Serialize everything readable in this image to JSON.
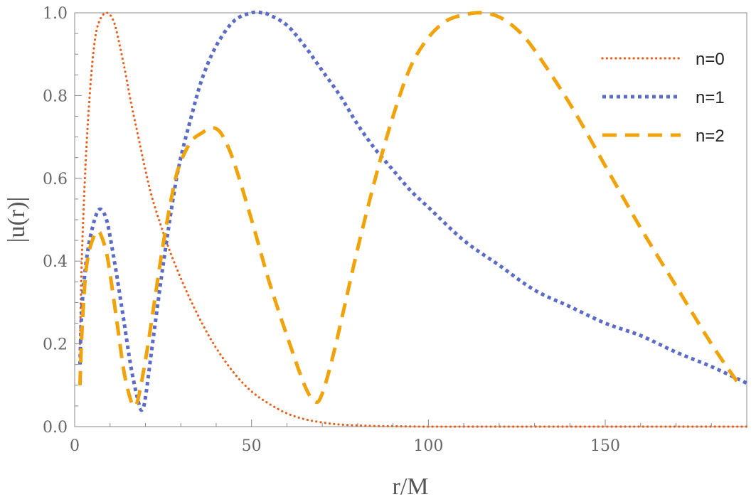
{
  "chart_data": {
    "type": "line",
    "title": "",
    "xlabel": "r/M",
    "ylabel": "|u(r)|",
    "xlim": [
      0,
      190
    ],
    "ylim": [
      0,
      1.0
    ],
    "xticks": [
      0,
      50,
      100,
      150
    ],
    "xtick_labels": [
      "0",
      "50",
      "100",
      "150"
    ],
    "yticks": [
      0,
      0.2,
      0.4,
      0.6,
      0.8,
      1.0
    ],
    "ytick_labels": [
      "0.0",
      "0.2",
      "0.4",
      "0.6",
      "0.8",
      "1.0"
    ],
    "grid": false,
    "legend_position": "top-right",
    "series": [
      {
        "name": "n=0",
        "style": "dotted",
        "color": "#E8601C",
        "x": [
          1.5,
          2,
          3,
          4,
          5,
          6,
          7,
          8,
          9,
          10,
          11,
          12,
          14,
          16,
          18,
          20,
          22,
          25,
          28,
          32,
          36,
          40,
          45,
          50,
          55,
          60,
          65,
          70,
          75,
          80,
          85,
          90,
          100,
          120,
          150,
          190
        ],
        "y": [
          0.2,
          0.4,
          0.62,
          0.77,
          0.88,
          0.95,
          0.98,
          0.995,
          1.0,
          0.995,
          0.98,
          0.95,
          0.87,
          0.78,
          0.7,
          0.62,
          0.55,
          0.47,
          0.4,
          0.32,
          0.25,
          0.19,
          0.13,
          0.085,
          0.055,
          0.032,
          0.018,
          0.01,
          0.005,
          0.003,
          0.0015,
          0.001,
          0.0,
          0.0,
          0.0,
          0.0
        ]
      },
      {
        "name": "n=1",
        "style": "dotted-short",
        "color": "#5B6BC8",
        "x": [
          1.5,
          2,
          3,
          4,
          5,
          6,
          7,
          8,
          9,
          10,
          12,
          14,
          16,
          18,
          19,
          20,
          22,
          25,
          28,
          30,
          33,
          36,
          40,
          45,
          50,
          53,
          55,
          60,
          65,
          70,
          75,
          80,
          85,
          90,
          95,
          100,
          110,
          120,
          130,
          140,
          150,
          160,
          170,
          180,
          190
        ],
        "y": [
          0.15,
          0.28,
          0.38,
          0.44,
          0.48,
          0.51,
          0.525,
          0.52,
          0.5,
          0.46,
          0.36,
          0.25,
          0.14,
          0.06,
          0.04,
          0.07,
          0.2,
          0.39,
          0.56,
          0.65,
          0.75,
          0.84,
          0.92,
          0.98,
          1.0,
          1.0,
          0.995,
          0.97,
          0.92,
          0.86,
          0.8,
          0.73,
          0.67,
          0.62,
          0.57,
          0.53,
          0.45,
          0.39,
          0.33,
          0.29,
          0.25,
          0.22,
          0.18,
          0.145,
          0.105
        ]
      },
      {
        "name": "n=2",
        "style": "dashed",
        "color": "#F0A30A",
        "x": [
          1.5,
          2,
          3,
          4,
          5,
          6,
          7,
          8,
          9,
          10,
          12,
          14,
          16,
          17,
          18,
          20,
          22,
          25,
          28,
          30,
          33,
          36,
          38,
          40,
          42,
          45,
          50,
          55,
          60,
          65,
          68,
          70,
          73,
          76,
          80,
          85,
          90,
          95,
          100,
          105,
          110,
          115,
          120,
          125,
          130,
          140,
          150,
          160,
          170,
          180,
          188
        ],
        "y": [
          0.1,
          0.22,
          0.36,
          0.42,
          0.45,
          0.47,
          0.47,
          0.45,
          0.42,
          0.37,
          0.25,
          0.13,
          0.06,
          0.05,
          0.07,
          0.16,
          0.27,
          0.44,
          0.58,
          0.64,
          0.69,
          0.71,
          0.72,
          0.72,
          0.7,
          0.64,
          0.5,
          0.35,
          0.22,
          0.1,
          0.06,
          0.08,
          0.17,
          0.28,
          0.43,
          0.6,
          0.75,
          0.87,
          0.94,
          0.98,
          0.995,
          1.0,
          0.99,
          0.96,
          0.91,
          0.78,
          0.63,
          0.48,
          0.34,
          0.2,
          0.1
        ]
      }
    ]
  }
}
